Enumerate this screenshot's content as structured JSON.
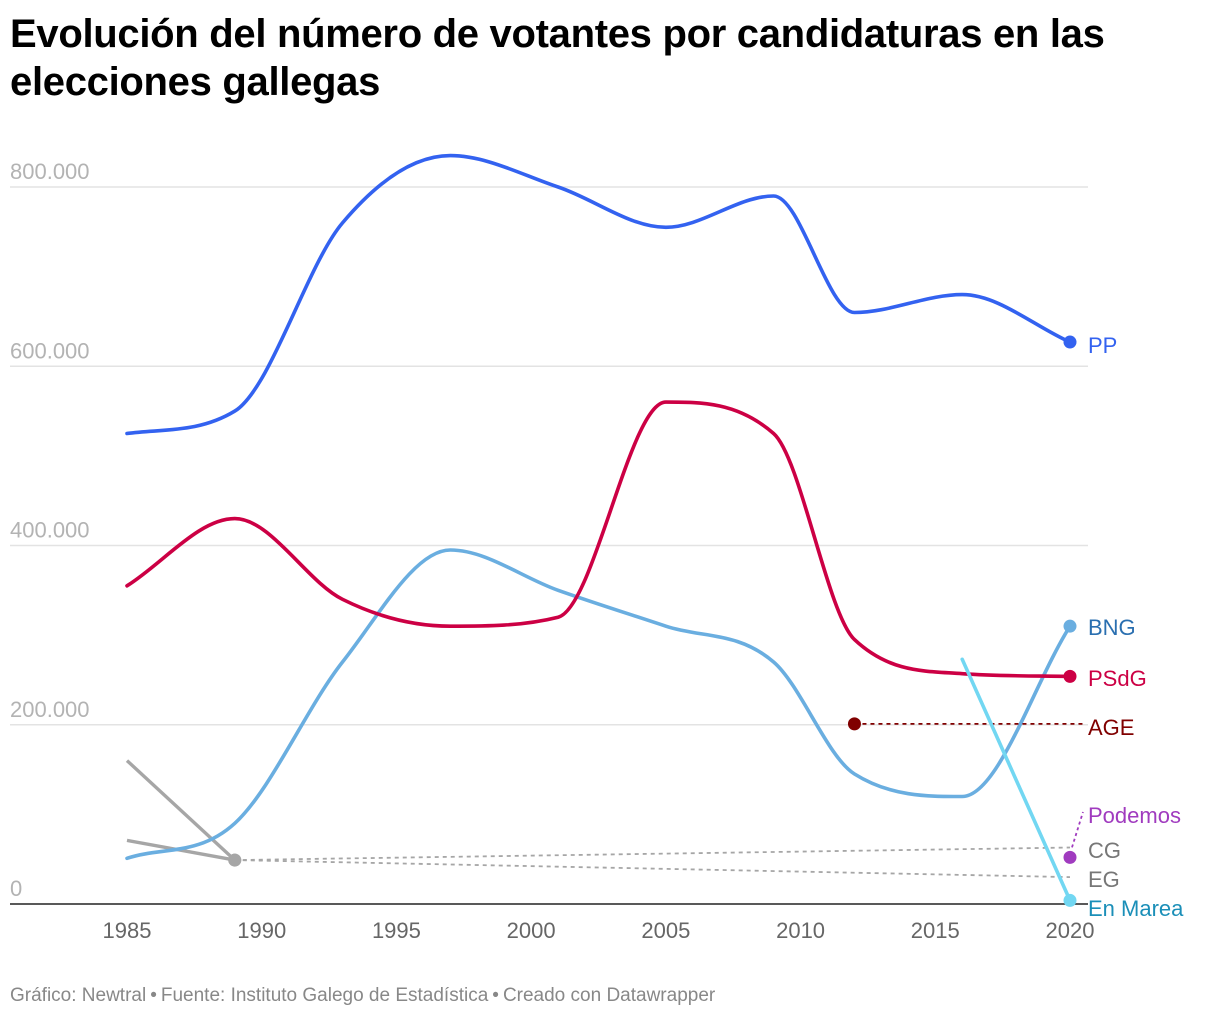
{
  "title": "Evolución del número de votantes por candidaturas en las elecciones gallegas",
  "footer": {
    "grafico": "Gráfico: Newtral",
    "fuente": "Fuente: Instituto Galego de Estadística",
    "creado": "Creado con Datawrapper"
  },
  "chart_data": {
    "type": "line",
    "title": "Evolución del número de votantes por candidaturas en las elecciones gallegas",
    "xlabel": "",
    "ylabel": "",
    "xlim": [
      1985,
      2020
    ],
    "ylim": [
      0,
      800000
    ],
    "x_ticks": [
      "1985",
      "1990",
      "1995",
      "2000",
      "2005",
      "2010",
      "2015",
      "2020"
    ],
    "y_ticks": [
      {
        "value": 0,
        "label": "0"
      },
      {
        "value": 200000,
        "label": "200.000"
      },
      {
        "value": 400000,
        "label": "400.000"
      },
      {
        "value": 600000,
        "label": "600.000"
      },
      {
        "value": 800000,
        "label": "800.000"
      }
    ],
    "grid": true,
    "legend": "direct labels at right end",
    "series": [
      {
        "name": "PP",
        "color": "#3362f0",
        "style": "solid",
        "end_marker": true,
        "x": [
          1985,
          1989,
          1993,
          1997,
          2001,
          2005,
          2009,
          2012,
          2016,
          2020
        ],
        "y": [
          525000,
          550000,
          760000,
          835000,
          800000,
          755000,
          790000,
          660000,
          680000,
          627000
        ]
      },
      {
        "name": "PSdG",
        "color": "#cc0044",
        "style": "solid",
        "end_marker": true,
        "x": [
          1985,
          1989,
          1993,
          1997,
          2001,
          2005,
          2009,
          2012,
          2016,
          2020
        ],
        "y": [
          355000,
          430000,
          340000,
          310000,
          320000,
          560000,
          525000,
          295000,
          257000,
          254000
        ]
      },
      {
        "name": "BNG",
        "color": "#6aaee0",
        "style": "solid",
        "end_marker": true,
        "x": [
          1985,
          1989,
          1993,
          1997,
          2001,
          2005,
          2009,
          2012,
          2016,
          2020
        ],
        "y": [
          51000,
          90000,
          270000,
          395000,
          350000,
          310000,
          270000,
          145000,
          120000,
          310000
        ]
      },
      {
        "name": "AGE",
        "color": "#800000",
        "style": "dotted",
        "end_marker": false,
        "start_marker": true,
        "x": [
          2012,
          2020
        ],
        "y": [
          201000,
          201000
        ]
      },
      {
        "name": "En Marea",
        "color": "#72d7f2",
        "style": "solid",
        "end_marker": true,
        "x": [
          2016,
          2020
        ],
        "y": [
          273000,
          4000
        ]
      },
      {
        "name": "Podemos",
        "color": "#a03bbf",
        "style": "solid",
        "end_marker": true,
        "x": [
          2020
        ],
        "y": [
          52000
        ]
      },
      {
        "name": "CG",
        "color": "#a6a6a6",
        "style": "solid-then-dotted",
        "end_marker": false,
        "x": [
          1985,
          1989,
          2020
        ],
        "y": [
          160000,
          49000,
          63000
        ]
      },
      {
        "name": "EG",
        "color": "#a6a6a6",
        "style": "solid-then-dotted",
        "end_marker": false,
        "x": [
          1985,
          1989,
          2020
        ],
        "y": [
          71000,
          49000,
          30000
        ]
      }
    ]
  }
}
